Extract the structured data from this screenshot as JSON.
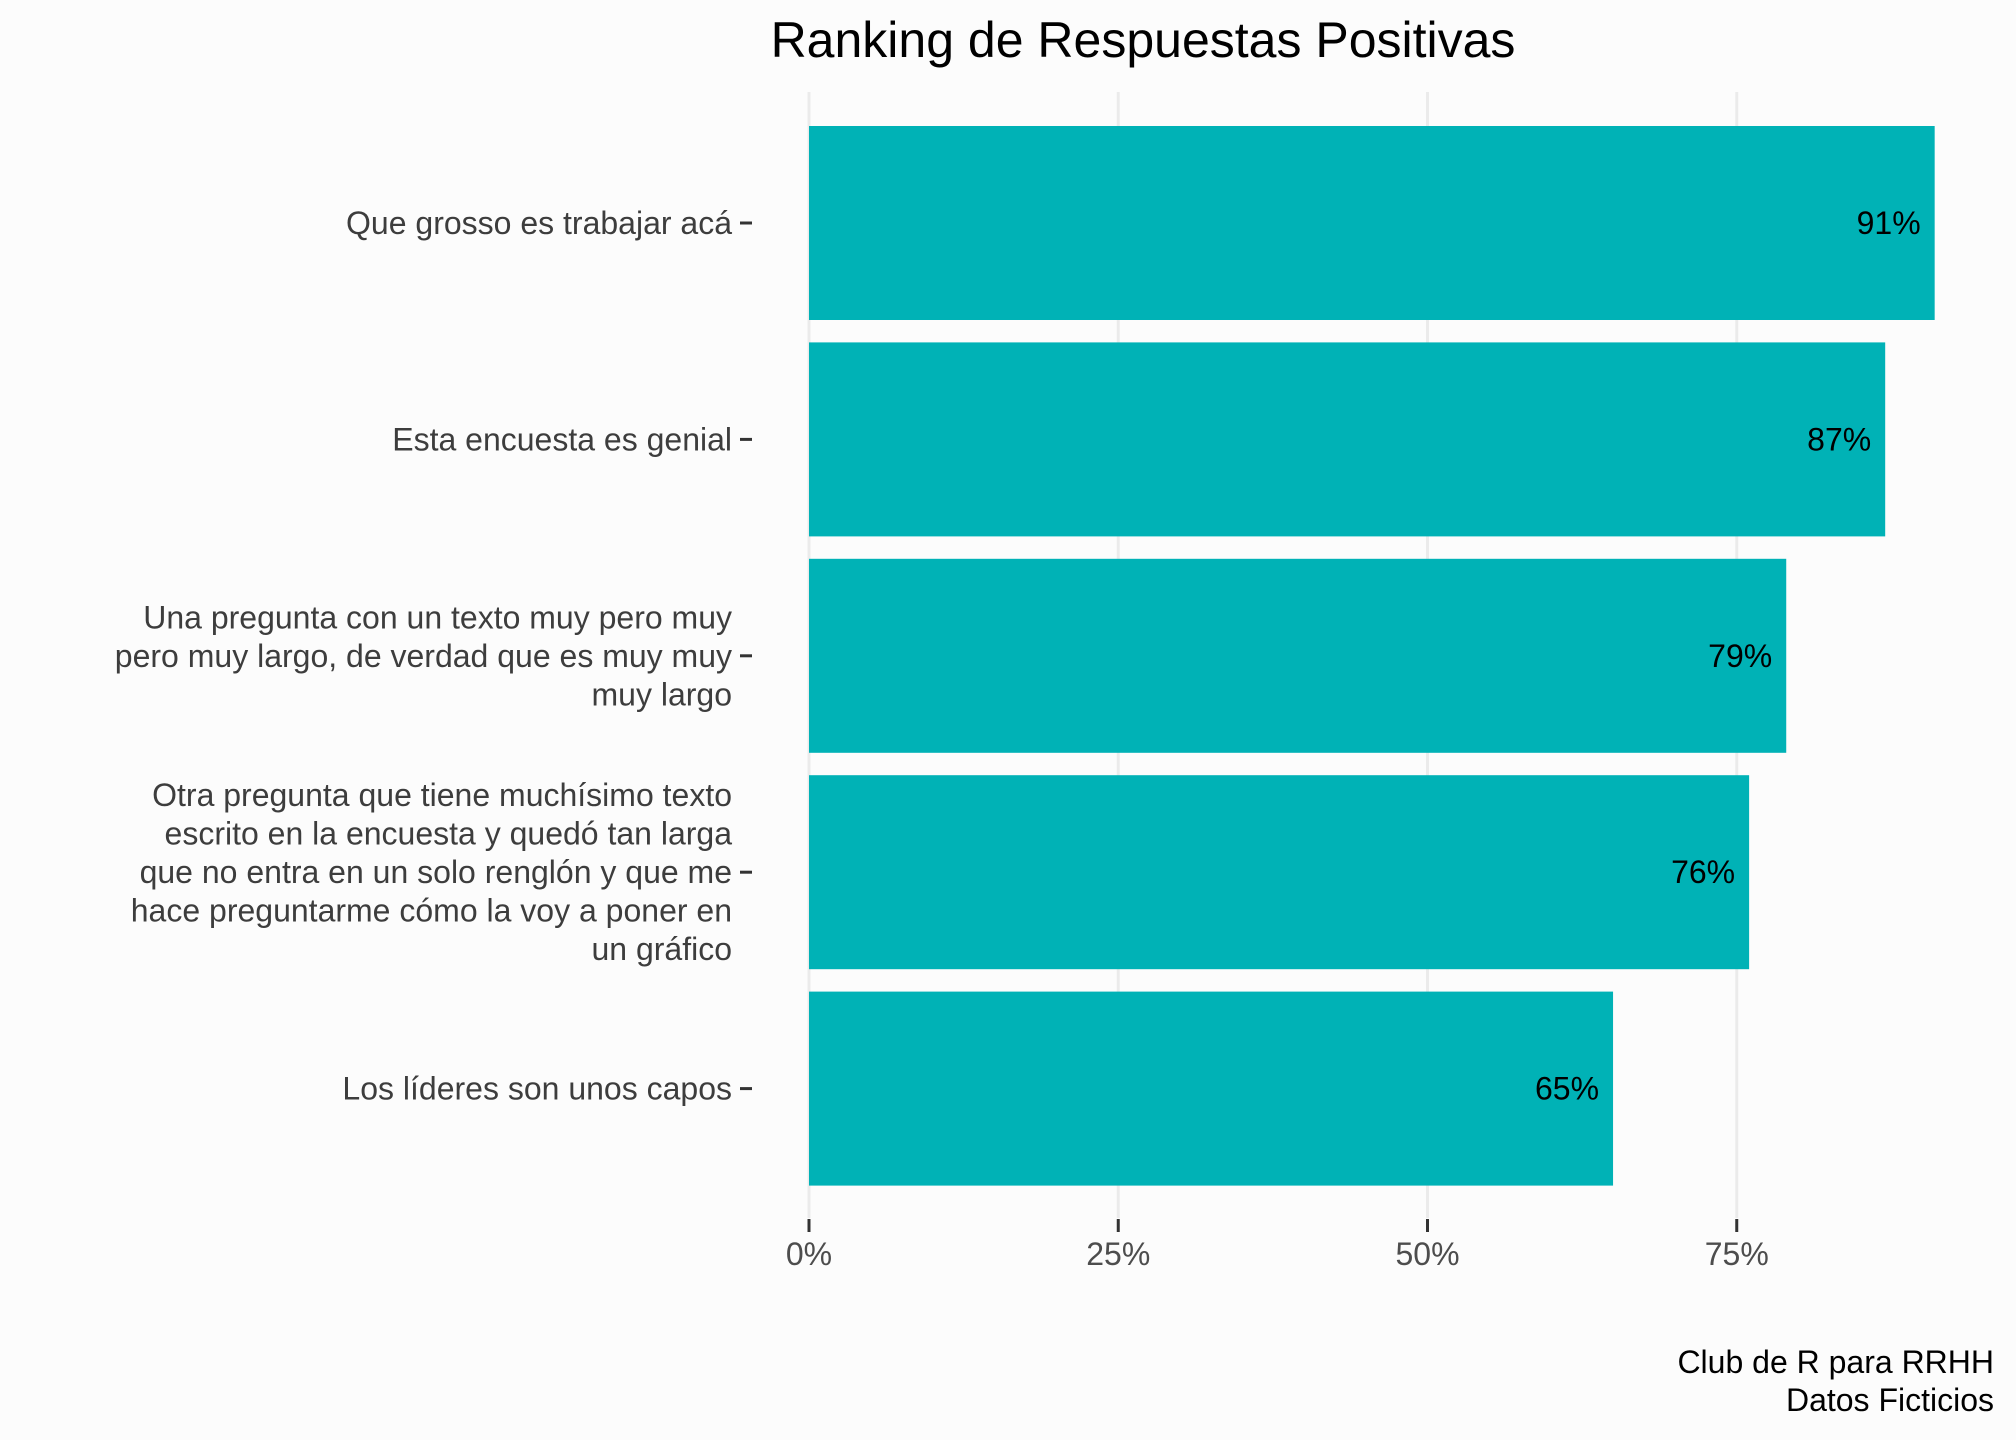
{
  "chart_data": {
    "type": "bar",
    "orientation": "horizontal",
    "title": "Ranking de Respuestas Positivas",
    "xlabel": "",
    "ylabel": "",
    "caption": [
      "Club de R para RRHH",
      "Datos Ficticios"
    ],
    "categories": [
      [
        "Que grosso es trabajar acá"
      ],
      [
        "Esta encuesta es genial"
      ],
      [
        "Una pregunta con un texto muy pero muy",
        "pero muy largo, de verdad que es muy muy",
        "muy largo"
      ],
      [
        "Otra pregunta que tiene muchísimo texto",
        "escrito en la encuesta y quedó tan larga",
        "que no entra en un solo renglón y que me",
        "hace preguntarme cómo la voy a poner en",
        "un gráfico"
      ],
      [
        "Los líderes son unos capos"
      ]
    ],
    "values": [
      0.91,
      0.87,
      0.79,
      0.76,
      0.65
    ],
    "data_labels": [
      "91%",
      "87%",
      "79%",
      "76%",
      "65%"
    ],
    "x_ticks": [
      0,
      0.25,
      0.5,
      0.75
    ],
    "x_tick_labels": [
      "0%",
      "25%",
      "50%",
      "75%"
    ],
    "xlim": [
      0,
      1
    ],
    "grid": "vertical major",
    "legend": "none",
    "colors": {
      "bar": "#00B2B6",
      "grid": "#EBEBEB",
      "background": "#FCFCFC",
      "axis_text": "#4D4D4D",
      "tick": "#333333"
    }
  }
}
